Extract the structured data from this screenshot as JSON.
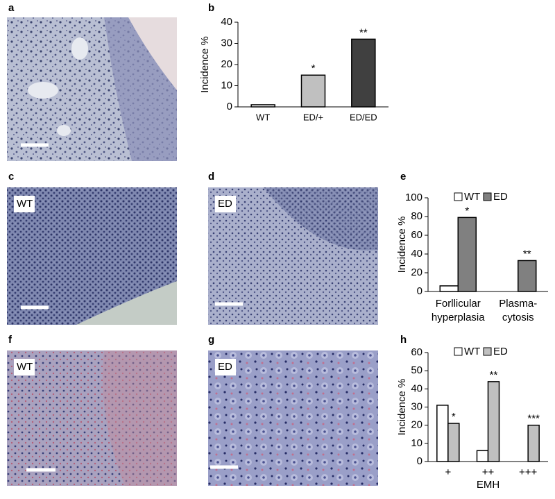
{
  "panels": [
    {
      "label": "a"
    },
    {
      "label": "c",
      "tag": "WT"
    },
    {
      "label": "d",
      "tag": "ED"
    },
    {
      "label": "f",
      "tag": "WT"
    },
    {
      "label": "g",
      "tag": "ED"
    }
  ],
  "chart_data": [
    {
      "type": "bar",
      "panel": "b",
      "ylabel": "Incidence %",
      "categories": [
        "WT",
        "ED/+",
        "ED/ED"
      ],
      "values": [
        1,
        15,
        32
      ],
      "colors": [
        "#ffffff",
        "#c0c0c0",
        "#404040"
      ],
      "annotations": [
        null,
        "*",
        "**"
      ],
      "ylim": [
        0,
        40
      ],
      "yticks": [
        0,
        10,
        20,
        30,
        40
      ]
    },
    {
      "type": "bar",
      "panel": "e",
      "ylabel": "Incidence %",
      "categories": [
        [
          "Forllicular",
          "hyperplasia"
        ],
        [
          "Plasma-",
          "cytosis"
        ]
      ],
      "series": [
        {
          "name": "WT",
          "color": "#ffffff",
          "values": [
            6,
            0
          ],
          "annotations": [
            null,
            null
          ]
        },
        {
          "name": "ED",
          "color": "#808080",
          "values": [
            79,
            33
          ],
          "annotations": [
            "*",
            "**"
          ]
        }
      ],
      "ylim": [
        0,
        100
      ],
      "yticks": [
        0,
        20,
        40,
        60,
        80,
        100
      ]
    },
    {
      "type": "bar",
      "panel": "h",
      "ylabel": "Incidence %",
      "xlabel": "EMH",
      "categories": [
        "+",
        "++",
        "+++"
      ],
      "series": [
        {
          "name": "WT",
          "color": "#ffffff",
          "values": [
            31,
            6,
            0
          ],
          "annotations": [
            null,
            null,
            null
          ]
        },
        {
          "name": "ED",
          "color": "#c0c0c0",
          "values": [
            21,
            44,
            20
          ],
          "annotations": [
            "*",
            "**",
            "***"
          ]
        }
      ],
      "ylim": [
        0,
        60
      ],
      "yticks": [
        0,
        10,
        20,
        30,
        40,
        50,
        60
      ]
    }
  ]
}
